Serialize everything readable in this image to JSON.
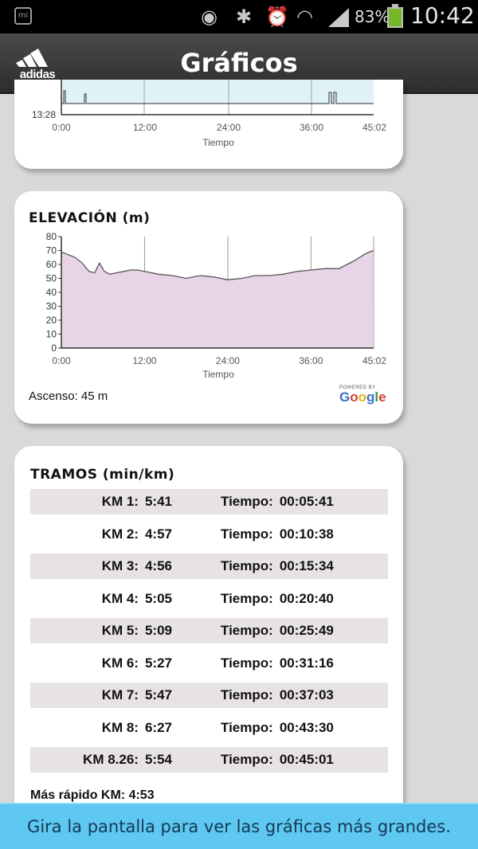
{
  "status_bar": {
    "battery_percent": "83%",
    "time": "10:42",
    "icons": [
      "mi-notification-icon",
      "eye-icon",
      "bluetooth-icon",
      "alarm-icon",
      "wifi-icon",
      "signal-icon",
      "battery-icon"
    ]
  },
  "header": {
    "logo_text": "adidas",
    "title": "Gráficos"
  },
  "top_chart": {
    "y_tick": "13:28",
    "x_ticks": [
      "0:00",
      "12:00",
      "24:00",
      "36:00",
      "45:02"
    ],
    "xlabel": "Tiempo"
  },
  "elevation": {
    "title": "ELEVACIÓN (m)",
    "ascent_text": "Ascenso: 45 m",
    "powered_by": "POWERED BY",
    "google": "Google"
  },
  "chart_data": {
    "type": "area",
    "title": "ELEVACIÓN (m)",
    "xlabel": "Tiempo",
    "ylabel": "",
    "x_ticks": [
      "0:00",
      "12:00",
      "24:00",
      "36:00",
      "45:02"
    ],
    "y_ticks": [
      0,
      10,
      20,
      30,
      40,
      50,
      60,
      70,
      80
    ],
    "ylim": [
      0,
      80
    ],
    "xlim_minutes": [
      0,
      45.03
    ],
    "grid": true,
    "color": "#e8d4e6",
    "series": [
      {
        "x_minutes": [
          0,
          1,
          2,
          3,
          4,
          4.8,
          5.5,
          6.2,
          7,
          8,
          9,
          10,
          11,
          12,
          14,
          16,
          18,
          20,
          22,
          24,
          26,
          28,
          30,
          32,
          34,
          36,
          38,
          40,
          42,
          43,
          44,
          45
        ],
        "values": [
          69,
          67,
          65,
          61,
          55,
          54,
          61,
          55,
          53,
          54,
          55,
          56,
          56,
          55,
          53,
          52,
          50,
          52,
          51,
          49,
          50,
          52,
          52,
          53,
          55,
          56,
          57,
          57,
          62,
          65,
          68,
          70
        ]
      }
    ]
  },
  "splits": {
    "title": "TRAMOS (min/km)",
    "time_label": "Tiempo:",
    "rows": [
      {
        "km": "KM 1:",
        "pace": "5:41",
        "time": "00:05:41"
      },
      {
        "km": "KM 2:",
        "pace": "4:57",
        "time": "00:10:38"
      },
      {
        "km": "KM 3:",
        "pace": "4:56",
        "time": "00:15:34"
      },
      {
        "km": "KM 4:",
        "pace": "5:05",
        "time": "00:20:40"
      },
      {
        "km": "KM 5:",
        "pace": "5:09",
        "time": "00:25:49"
      },
      {
        "km": "KM 6:",
        "pace": "5:27",
        "time": "00:31:16"
      },
      {
        "km": "KM 7:",
        "pace": "5:47",
        "time": "00:37:03"
      },
      {
        "km": "KM 8:",
        "pace": "6:27",
        "time": "00:43:30"
      },
      {
        "km": "KM 8.26:",
        "pace": "5:54",
        "time": "00:45:01"
      }
    ],
    "fastest": "Más rápido KM: 4:53"
  },
  "banner": {
    "text": "Gira la pantalla para ver las gráficas más grandes."
  }
}
